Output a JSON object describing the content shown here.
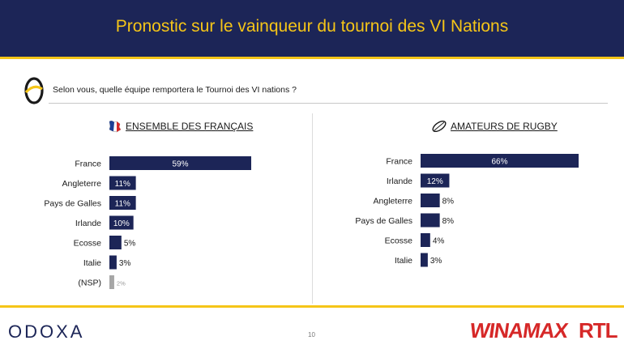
{
  "header": {
    "title": "Pronostic sur le vainqueur du tournoi des VI Nations"
  },
  "question": {
    "text": "Selon vous, quelle équipe remportera le Tournoi des VI nations ?"
  },
  "colors": {
    "navy": "#1c2557",
    "gold": "#f5c518",
    "gray_bar": "#a6a6a6",
    "brand_red": "#d62828"
  },
  "chart_data": [
    {
      "type": "bar",
      "orientation": "horizontal",
      "title": "ENSEMBLE DES FRANÇAIS",
      "icon": "france-flag-icon",
      "categories": [
        "France",
        "Angleterre",
        "Pays de Galles",
        "Irlande",
        "Ecosse",
        "Italie",
        "(NSP)"
      ],
      "values": [
        59,
        11,
        11,
        10,
        5,
        3,
        2
      ],
      "labels": [
        "59%",
        "11%",
        "11%",
        "10%",
        "5%",
        "3%",
        "2%"
      ],
      "highlight_gray": [
        "(NSP)"
      ],
      "unit": "%"
    },
    {
      "type": "bar",
      "orientation": "horizontal",
      "title": "AMATEURS DE RUGBY",
      "icon": "rugby-ball-icon",
      "categories": [
        "France",
        "Irlande",
        "Angleterre",
        "Pays de Galles",
        "Ecosse",
        "Italie"
      ],
      "values": [
        66,
        12,
        8,
        8,
        4,
        3
      ],
      "labels": [
        "66%",
        "12%",
        "8%",
        "8%",
        "4%",
        "3%"
      ],
      "unit": "%"
    }
  ],
  "footer": {
    "logo": "ODOXA",
    "page": "10",
    "sponsor1": "WINAMAX",
    "sponsor2": "RTL"
  }
}
